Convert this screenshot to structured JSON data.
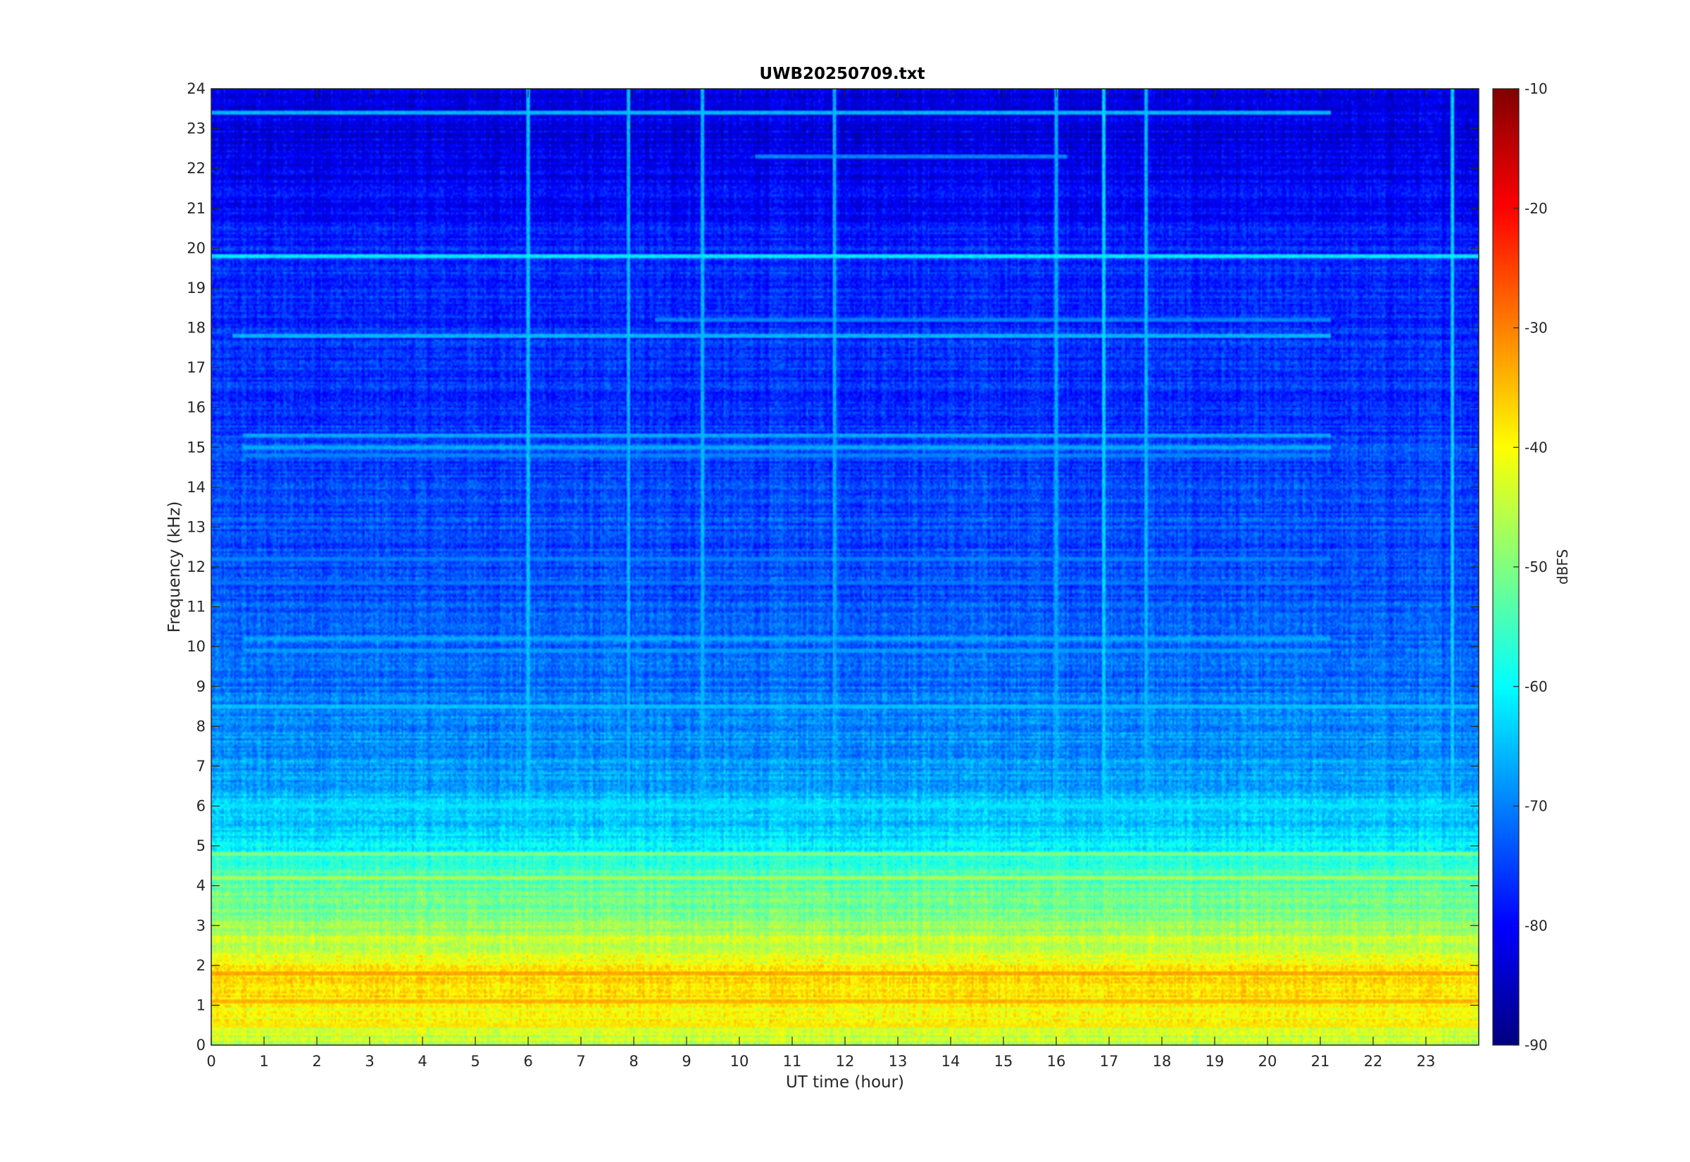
{
  "chart_data": {
    "type": "heatmap",
    "title": "UWB20250709.txt",
    "xlabel": "UT time (hour)",
    "ylabel": "Frequency (kHz)",
    "xlim": [
      0,
      24
    ],
    "ylim": [
      0,
      24
    ],
    "x_ticks": [
      0,
      1,
      2,
      3,
      4,
      5,
      6,
      7,
      8,
      9,
      10,
      11,
      12,
      13,
      14,
      15,
      16,
      17,
      18,
      19,
      20,
      21,
      22,
      23
    ],
    "y_ticks": [
      0,
      1,
      2,
      3,
      4,
      5,
      6,
      7,
      8,
      9,
      10,
      11,
      12,
      13,
      14,
      15,
      16,
      17,
      18,
      19,
      20,
      21,
      22,
      23,
      24
    ],
    "colorbar": {
      "label": "dBFS",
      "colormap": "jet",
      "range": [
        -90,
        -10
      ],
      "ticks": [
        -10,
        -20,
        -30,
        -40,
        -50,
        -60,
        -70,
        -80,
        -90
      ]
    },
    "spectral_profile": {
      "frequency_khz": [
        0,
        0.5,
        1,
        1.5,
        2,
        2.5,
        3,
        3.5,
        4,
        4.5,
        5,
        5.5,
        6,
        6.5,
        7,
        8,
        9,
        10,
        11,
        12,
        13,
        14,
        15,
        16,
        17,
        18,
        19,
        20,
        21,
        22,
        23,
        24
      ],
      "level_dbfs": [
        -46,
        -41,
        -39,
        -37,
        -40,
        -44,
        -48,
        -51,
        -53,
        -56,
        -61,
        -64,
        -65,
        -67,
        -68,
        -69,
        -71,
        -72,
        -73,
        -74,
        -74,
        -75,
        -75,
        -76,
        -76,
        -77,
        -77,
        -77,
        -79,
        -81,
        -82,
        -82
      ]
    },
    "horizontal_lines": [
      {
        "freq_khz": 19.8,
        "level_dbfs": -62,
        "t_start": 0,
        "t_end": 24
      },
      {
        "freq_khz": 23.4,
        "level_dbfs": -66,
        "t_start": 0,
        "t_end": 21.2
      },
      {
        "freq_khz": 17.8,
        "level_dbfs": -66,
        "t_start": 0.4,
        "t_end": 21.2
      },
      {
        "freq_khz": 18.2,
        "level_dbfs": -70,
        "t_start": 8.4,
        "t_end": 21.2
      },
      {
        "freq_khz": 22.3,
        "level_dbfs": -70,
        "t_start": 10.3,
        "t_end": 16.2
      },
      {
        "freq_khz": 15.3,
        "level_dbfs": -67,
        "t_start": 0.6,
        "t_end": 21.2
      },
      {
        "freq_khz": 15.0,
        "level_dbfs": -67,
        "t_start": 0.6,
        "t_end": 21.2
      },
      {
        "freq_khz": 14.8,
        "level_dbfs": -70,
        "t_start": 0.6,
        "t_end": 21.2
      },
      {
        "freq_khz": 10.2,
        "level_dbfs": -67,
        "t_start": 0.6,
        "t_end": 21.2
      },
      {
        "freq_khz": 9.9,
        "level_dbfs": -68,
        "t_start": 0.6,
        "t_end": 21.2
      },
      {
        "freq_khz": 12.2,
        "level_dbfs": -70,
        "t_start": 0,
        "t_end": 21.2
      },
      {
        "freq_khz": 11.6,
        "level_dbfs": -71,
        "t_start": 0,
        "t_end": 21.2
      },
      {
        "freq_khz": 6.0,
        "level_dbfs": -62,
        "t_start": 0,
        "t_end": 24
      },
      {
        "freq_khz": 8.5,
        "level_dbfs": -65,
        "t_start": 0,
        "t_end": 24
      },
      {
        "freq_khz": 4.8,
        "level_dbfs": -50,
        "t_start": 0,
        "t_end": 24
      },
      {
        "freq_khz": 4.2,
        "level_dbfs": -47,
        "t_start": 0,
        "t_end": 24
      },
      {
        "freq_khz": 1.8,
        "level_dbfs": -33,
        "t_start": 0,
        "t_end": 24
      },
      {
        "freq_khz": 1.1,
        "level_dbfs": -34,
        "t_start": 0,
        "t_end": 24
      },
      {
        "freq_khz": 0.5,
        "level_dbfs": -38,
        "t_start": 0,
        "t_end": 24
      }
    ],
    "vertical_lines": [
      {
        "time_hour": 6.0,
        "level_dbfs": -65
      },
      {
        "time_hour": 7.9,
        "level_dbfs": -66
      },
      {
        "time_hour": 9.3,
        "level_dbfs": -66
      },
      {
        "time_hour": 11.8,
        "level_dbfs": -67
      },
      {
        "time_hour": 16.0,
        "level_dbfs": -67
      },
      {
        "time_hour": 16.9,
        "level_dbfs": -64
      },
      {
        "time_hour": 17.7,
        "level_dbfs": -66
      },
      {
        "time_hour": 23.5,
        "level_dbfs": -64
      }
    ]
  }
}
